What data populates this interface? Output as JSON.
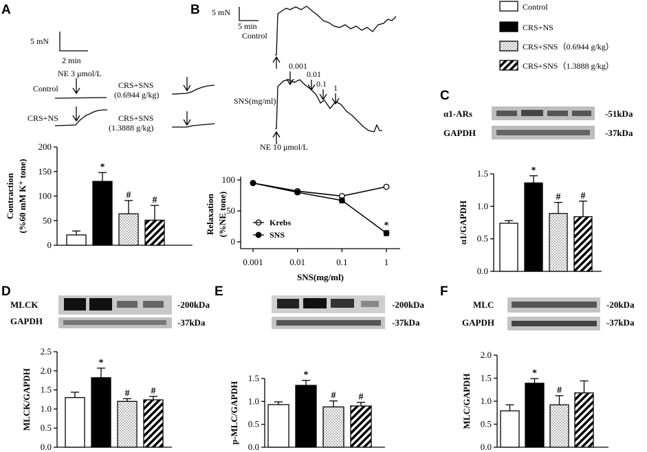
{
  "panels": {
    "A": {
      "letter": "A",
      "scale_force": "5 mN",
      "scale_time": "2 min",
      "stimulus": "NE 3 μmol/L",
      "traces": [
        "Control",
        "CRS+NS",
        "CRS+SNS",
        "(0.6944 g/kg)",
        "CRS+SNS",
        "(1.3888 g/kg)"
      ]
    },
    "B": {
      "letter": "B",
      "scale_force": "5 mN",
      "scale_time": "5 min",
      "control_label": "Control",
      "sns_label": "SNS(mg/ml)",
      "stimulus": "NE 10 μmol/L",
      "doses": [
        "0.001",
        "0.01",
        "0.1",
        "1"
      ]
    },
    "C": {
      "letter": "C",
      "blot_rows": [
        "α1-ARs",
        "GAPDH"
      ],
      "blot_sizes": [
        "-51kDa",
        "-37kDa"
      ]
    },
    "D": {
      "letter": "D",
      "blot_rows": [
        "MLCK",
        "GAPDH"
      ],
      "blot_sizes": [
        "-200kDa",
        "-37kDa"
      ]
    },
    "E": {
      "letter": "E",
      "blot_sizes": [
        "-200kDa",
        "-37kDa"
      ]
    },
    "F": {
      "letter": "F",
      "blot_rows": [
        "MLC",
        "GAPDH"
      ],
      "blot_sizes": [
        "-20kDa",
        "-37kDa"
      ]
    }
  },
  "legend": [
    "Control",
    "CRS+NS",
    "CRS+SNS（0.6944 g/kg）",
    "CRS+SNS（1.3888 g/kg）"
  ],
  "chart_data": [
    {
      "id": "A",
      "type": "bar",
      "ylabel": [
        "Contraction",
        "(%60 mM K⁺ tone)"
      ],
      "ylim": [
        0,
        200
      ],
      "yticks": [
        0,
        50,
        100,
        150,
        200
      ],
      "values": [
        21,
        130,
        64,
        51
      ],
      "errors": [
        8,
        18,
        27,
        30
      ],
      "marks": [
        "",
        "*",
        "#",
        "#"
      ]
    },
    {
      "id": "B",
      "type": "line",
      "ylabel": [
        "Relaxation",
        "(%NE tone)"
      ],
      "xlabel": "SNS(mg/ml)",
      "x": [
        0.001,
        0.01,
        0.1,
        1
      ],
      "xscale": "log",
      "ylim": [
        0,
        100
      ],
      "yticks": [
        0,
        50,
        100
      ],
      "series": [
        {
          "name": "Krebs",
          "values": [
            95,
            82,
            74,
            89
          ]
        },
        {
          "name": "SNS",
          "values": [
            95,
            80,
            67,
            14
          ],
          "errors": [
            2,
            3,
            4,
            4
          ],
          "marks": [
            "",
            "",
            "",
            "*"
          ]
        }
      ],
      "legend_position": "bottom-left"
    },
    {
      "id": "C",
      "type": "bar",
      "ylabel": "α1/GAPDH",
      "ylim": [
        0,
        1.5
      ],
      "yticks": [
        "0.0",
        "0.5",
        "1.0",
        "1.5"
      ],
      "values": [
        0.74,
        1.36,
        0.89,
        0.84
      ],
      "errors": [
        0.04,
        0.11,
        0.17,
        0.24
      ],
      "marks": [
        "",
        "*",
        "#",
        "#"
      ]
    },
    {
      "id": "D",
      "type": "bar",
      "ylabel": "MLCK/GAPDH",
      "ylim": [
        0,
        2.5
      ],
      "yticks": [
        "0.0",
        "0.5",
        "1.0",
        "1.5",
        "2.0",
        "2.5"
      ],
      "values": [
        1.3,
        1.82,
        1.2,
        1.24
      ],
      "errors": [
        0.14,
        0.25,
        0.07,
        0.09
      ],
      "marks": [
        "",
        "*",
        "#",
        "#"
      ]
    },
    {
      "id": "E",
      "type": "bar",
      "ylabel": "p-MLC/GAPDH",
      "ylim": [
        0,
        1.5
      ],
      "yticks": [
        "0.0",
        "0.5",
        "1.0",
        "1.5"
      ],
      "values": [
        0.93,
        1.35,
        0.88,
        0.9
      ],
      "errors": [
        0.06,
        0.11,
        0.13,
        0.08
      ],
      "marks": [
        "",
        "*",
        "#",
        "#"
      ]
    },
    {
      "id": "F",
      "type": "bar",
      "ylabel": "MLC/GAPDH",
      "ylim": [
        0,
        2.0
      ],
      "yticks": [
        "0.0",
        "0.5",
        "1.0",
        "1.5",
        "2.0"
      ],
      "values": [
        0.79,
        1.39,
        0.92,
        1.18
      ],
      "errors": [
        0.13,
        0.1,
        0.2,
        0.26
      ],
      "marks": [
        "",
        "*",
        "#",
        ""
      ]
    }
  ]
}
